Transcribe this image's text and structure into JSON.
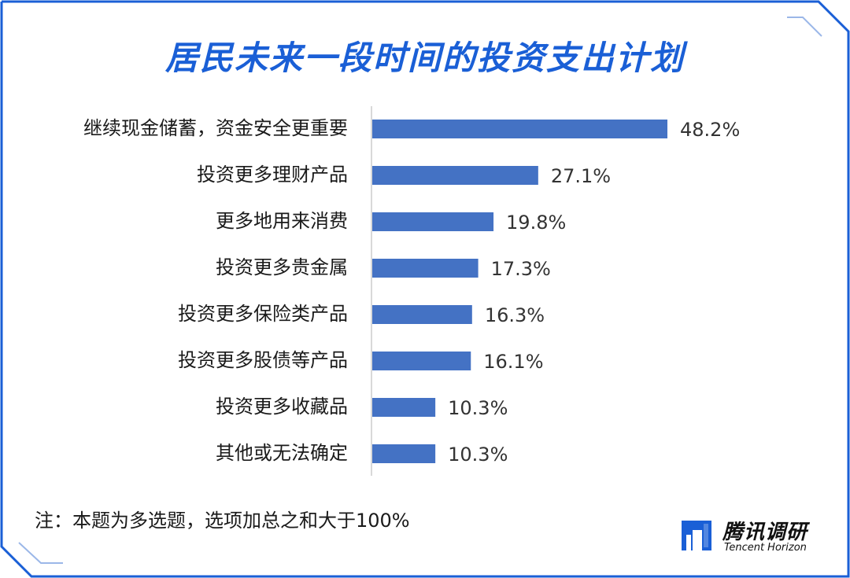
{
  "title": "居民未来一段时间的投资支出计划",
  "note": "注：本题为多选题，选项加总之和大于100%",
  "brand": {
    "name_cn": "腾讯调研",
    "name_en": "Tencent Horizon"
  },
  "colors": {
    "bar": "#4472c4",
    "title": "#1a5fd6",
    "frame": "#1a5fd6"
  },
  "chart_data": {
    "type": "bar",
    "orientation": "horizontal",
    "categories": [
      "继续现金储蓄，资金安全更重要",
      "投资更多理财产品",
      "更多地用来消费",
      "投资更多贵金属",
      "投资更多保险类产品",
      "投资更多股债等产品",
      "投资更多收藏品",
      "其他或无法确定"
    ],
    "values": [
      48.2,
      27.1,
      19.8,
      17.3,
      16.3,
      16.1,
      10.3,
      10.3
    ],
    "value_labels": [
      "48.2%",
      "27.1%",
      "19.8%",
      "17.3%",
      "16.3%",
      "16.1%",
      "10.3%",
      "10.3%"
    ],
    "xlim": [
      0,
      50
    ],
    "grid": false,
    "legend": "none"
  }
}
